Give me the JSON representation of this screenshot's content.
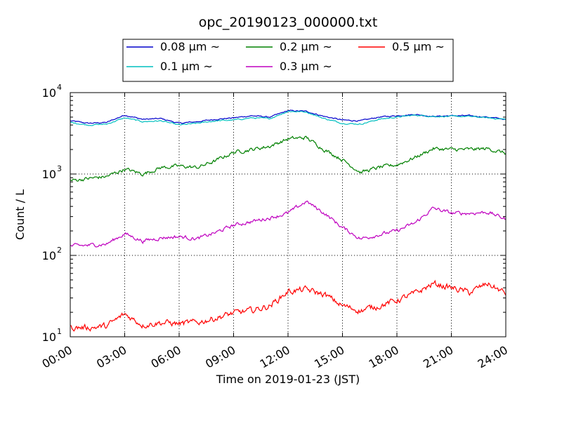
{
  "chart_data": {
    "type": "line",
    "title": "opc_20190123_000000.txt",
    "xlabel": "Time on 2019-01-23 (JST)",
    "ylabel": "Count / L",
    "yscale": "log",
    "ylim": [
      10,
      10000
    ],
    "xlim_hours": [
      0,
      24
    ],
    "grid": true,
    "legend_position": "top-center, outside plot, 3 columns",
    "x_tick_labels": [
      "00:00",
      "03:00",
      "06:00",
      "09:00",
      "12:00",
      "15:00",
      "18:00",
      "21:00",
      "24:00"
    ],
    "y_ticks": [
      {
        "value": 10,
        "base": "10",
        "exp": "1"
      },
      {
        "value": 100,
        "base": "10",
        "exp": "2"
      },
      {
        "value": 1000,
        "base": "10",
        "exp": "3"
      },
      {
        "value": 10000,
        "base": "10",
        "exp": "4"
      }
    ],
    "x_hours": [
      0,
      1,
      2,
      3,
      4,
      5,
      6,
      7,
      8,
      9,
      10,
      11,
      12,
      13,
      14,
      15,
      16,
      17,
      18,
      19,
      20,
      21,
      22,
      23,
      24
    ],
    "series": [
      {
        "name": "0.08 μm ~",
        "color": "#0000cc",
        "values": [
          4500,
          4200,
          4300,
          5300,
          4700,
          4800,
          4200,
          4400,
          4700,
          4900,
          5200,
          5000,
          6000,
          5900,
          5100,
          4600,
          4500,
          5000,
          5200,
          5400,
          5100,
          5200,
          5200,
          5000,
          4700
        ]
      },
      {
        "name": "0.1 μm ~",
        "color": "#00bfbf",
        "values": [
          4300,
          4000,
          4100,
          4900,
          4400,
          4500,
          4000,
          4200,
          4500,
          4600,
          4900,
          4800,
          5900,
          5800,
          4800,
          4200,
          4100,
          4700,
          5000,
          5300,
          5100,
          5100,
          5100,
          4900,
          4700
        ]
      },
      {
        "name": "0.2 μm ~",
        "color": "#008000",
        "values": [
          830,
          880,
          930,
          1150,
          1000,
          1200,
          1250,
          1200,
          1450,
          1850,
          2000,
          2200,
          2700,
          2800,
          2000,
          1500,
          1050,
          1200,
          1300,
          1600,
          2050,
          2000,
          2000,
          2050,
          1800
        ]
      },
      {
        "name": "0.3 μm ~",
        "color": "#bf00bf",
        "values": [
          130,
          133,
          138,
          185,
          150,
          165,
          170,
          160,
          190,
          235,
          260,
          290,
          330,
          460,
          330,
          220,
          160,
          180,
          200,
          250,
          380,
          330,
          330,
          340,
          280
        ]
      },
      {
        "name": "0.5 μm ~",
        "color": "#ff0000",
        "values": [
          13,
          13,
          13.5,
          19,
          14,
          15,
          14.5,
          15,
          17,
          19.5,
          21,
          24,
          36,
          38,
          33,
          24,
          21,
          24,
          28,
          34,
          45,
          40,
          35,
          45,
          34
        ]
      }
    ]
  }
}
